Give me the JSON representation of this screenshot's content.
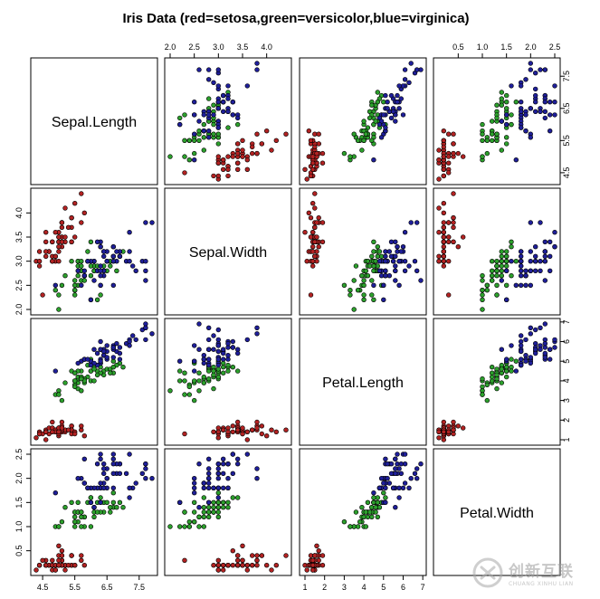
{
  "chart_data": {
    "type": "scatter",
    "subtype": "scatterplot-matrix",
    "title": "Iris Data (red=setosa,green=versicolor,blue=virginica)",
    "variables": [
      "Sepal.Length",
      "Sepal.Width",
      "Petal.Length",
      "Petal.Width"
    ],
    "ranges": [
      [
        4.3,
        7.9
      ],
      [
        2.0,
        4.4
      ],
      [
        1.0,
        6.9
      ],
      [
        0.1,
        2.5
      ]
    ],
    "ticks": [
      {
        "values": [
          4.5,
          5.5,
          6.5,
          7.5
        ],
        "labels": [
          "4.5",
          "5.5",
          "6.5",
          "7.5"
        ]
      },
      {
        "values": [
          2.0,
          2.5,
          3.0,
          3.5,
          4.0
        ],
        "labels": [
          "2.0",
          "2.5",
          "3.0",
          "3.5",
          "4.0"
        ]
      },
      {
        "values": [
          1,
          2,
          3,
          4,
          5,
          6,
          7
        ],
        "labels": [
          "1",
          "2",
          "3",
          "4",
          "5",
          "6",
          "7"
        ]
      },
      {
        "values": [
          0.5,
          1.0,
          1.5,
          2.0,
          2.5
        ],
        "labels": [
          "0.5",
          "1.0",
          "1.5",
          "2.0",
          "2.5"
        ]
      }
    ],
    "grid": false,
    "legend": "none",
    "series": [
      {
        "name": "setosa",
        "color": "#b22222",
        "points": [
          [
            5.1,
            3.5,
            1.4,
            0.2
          ],
          [
            4.9,
            3.0,
            1.4,
            0.2
          ],
          [
            4.7,
            3.2,
            1.3,
            0.2
          ],
          [
            4.6,
            3.1,
            1.5,
            0.2
          ],
          [
            5.0,
            3.6,
            1.4,
            0.2
          ],
          [
            5.4,
            3.9,
            1.7,
            0.4
          ],
          [
            4.6,
            3.4,
            1.4,
            0.3
          ],
          [
            5.0,
            3.4,
            1.5,
            0.2
          ],
          [
            4.4,
            2.9,
            1.4,
            0.2
          ],
          [
            4.9,
            3.1,
            1.5,
            0.1
          ],
          [
            5.4,
            3.7,
            1.5,
            0.2
          ],
          [
            4.8,
            3.4,
            1.6,
            0.2
          ],
          [
            4.8,
            3.0,
            1.4,
            0.1
          ],
          [
            4.3,
            3.0,
            1.1,
            0.1
          ],
          [
            5.8,
            4.0,
            1.2,
            0.2
          ],
          [
            5.7,
            4.4,
            1.5,
            0.4
          ],
          [
            5.4,
            3.9,
            1.3,
            0.4
          ],
          [
            5.1,
            3.5,
            1.4,
            0.3
          ],
          [
            5.7,
            3.8,
            1.7,
            0.3
          ],
          [
            5.1,
            3.8,
            1.5,
            0.3
          ],
          [
            5.4,
            3.4,
            1.7,
            0.2
          ],
          [
            5.1,
            3.7,
            1.5,
            0.4
          ],
          [
            4.6,
            3.6,
            1.0,
            0.2
          ],
          [
            5.1,
            3.3,
            1.7,
            0.5
          ],
          [
            4.8,
            3.4,
            1.9,
            0.2
          ],
          [
            5.0,
            3.0,
            1.6,
            0.2
          ],
          [
            5.0,
            3.4,
            1.6,
            0.4
          ],
          [
            5.2,
            3.5,
            1.5,
            0.2
          ],
          [
            5.2,
            3.4,
            1.4,
            0.2
          ],
          [
            4.7,
            3.2,
            1.6,
            0.2
          ],
          [
            4.8,
            3.1,
            1.6,
            0.2
          ],
          [
            5.4,
            3.4,
            1.5,
            0.4
          ],
          [
            5.2,
            4.1,
            1.5,
            0.1
          ],
          [
            5.5,
            4.2,
            1.4,
            0.2
          ],
          [
            4.9,
            3.1,
            1.5,
            0.2
          ],
          [
            5.0,
            3.2,
            1.2,
            0.2
          ],
          [
            5.5,
            3.5,
            1.3,
            0.2
          ],
          [
            4.9,
            3.6,
            1.4,
            0.1
          ],
          [
            4.4,
            3.0,
            1.3,
            0.2
          ],
          [
            5.1,
            3.4,
            1.5,
            0.2
          ],
          [
            5.0,
            3.5,
            1.3,
            0.3
          ],
          [
            4.5,
            2.3,
            1.3,
            0.3
          ],
          [
            4.4,
            3.2,
            1.3,
            0.2
          ],
          [
            5.0,
            3.5,
            1.6,
            0.6
          ],
          [
            5.1,
            3.8,
            1.9,
            0.4
          ],
          [
            4.8,
            3.0,
            1.4,
            0.3
          ],
          [
            5.1,
            3.8,
            1.6,
            0.2
          ],
          [
            4.6,
            3.2,
            1.4,
            0.2
          ],
          [
            5.3,
            3.7,
            1.5,
            0.2
          ],
          [
            5.0,
            3.3,
            1.4,
            0.2
          ]
        ]
      },
      {
        "name": "versicolor",
        "color": "#2ca02c",
        "points": [
          [
            7.0,
            3.2,
            4.7,
            1.4
          ],
          [
            6.4,
            3.2,
            4.5,
            1.5
          ],
          [
            6.9,
            3.1,
            4.9,
            1.5
          ],
          [
            5.5,
            2.3,
            4.0,
            1.3
          ],
          [
            6.5,
            2.8,
            4.6,
            1.5
          ],
          [
            5.7,
            2.8,
            4.5,
            1.3
          ],
          [
            6.3,
            3.3,
            4.7,
            1.6
          ],
          [
            4.9,
            2.4,
            3.3,
            1.0
          ],
          [
            6.6,
            2.9,
            4.6,
            1.3
          ],
          [
            5.2,
            2.7,
            3.9,
            1.4
          ],
          [
            5.0,
            2.0,
            3.5,
            1.0
          ],
          [
            5.9,
            3.0,
            4.2,
            1.5
          ],
          [
            6.0,
            2.2,
            4.0,
            1.0
          ],
          [
            6.1,
            2.9,
            4.7,
            1.4
          ],
          [
            5.6,
            2.9,
            3.6,
            1.3
          ],
          [
            6.7,
            3.1,
            4.4,
            1.4
          ],
          [
            5.6,
            3.0,
            4.5,
            1.5
          ],
          [
            5.8,
            2.7,
            4.1,
            1.0
          ],
          [
            6.2,
            2.2,
            4.5,
            1.5
          ],
          [
            5.6,
            2.5,
            3.9,
            1.1
          ],
          [
            5.9,
            3.2,
            4.8,
            1.8
          ],
          [
            6.1,
            2.8,
            4.0,
            1.3
          ],
          [
            6.3,
            2.5,
            4.9,
            1.5
          ],
          [
            6.1,
            2.8,
            4.7,
            1.2
          ],
          [
            6.4,
            2.9,
            4.3,
            1.3
          ],
          [
            6.6,
            3.0,
            4.4,
            1.4
          ],
          [
            6.8,
            2.8,
            4.8,
            1.4
          ],
          [
            6.7,
            3.0,
            5.0,
            1.7
          ],
          [
            6.0,
            2.9,
            4.5,
            1.5
          ],
          [
            5.7,
            2.6,
            3.5,
            1.0
          ],
          [
            5.5,
            2.4,
            3.8,
            1.1
          ],
          [
            5.5,
            2.4,
            3.7,
            1.0
          ],
          [
            5.8,
            2.7,
            3.9,
            1.2
          ],
          [
            6.0,
            2.7,
            5.1,
            1.6
          ],
          [
            5.4,
            3.0,
            4.5,
            1.5
          ],
          [
            6.0,
            3.4,
            4.5,
            1.6
          ],
          [
            6.7,
            3.1,
            4.7,
            1.5
          ],
          [
            6.3,
            2.3,
            4.4,
            1.3
          ],
          [
            5.6,
            3.0,
            4.1,
            1.3
          ],
          [
            5.5,
            2.5,
            4.0,
            1.3
          ],
          [
            5.5,
            2.6,
            4.4,
            1.2
          ],
          [
            6.1,
            3.0,
            4.6,
            1.4
          ],
          [
            5.8,
            2.6,
            4.0,
            1.2
          ],
          [
            5.0,
            2.3,
            3.3,
            1.0
          ],
          [
            5.6,
            2.7,
            4.2,
            1.3
          ],
          [
            5.7,
            3.0,
            4.2,
            1.2
          ],
          [
            5.7,
            2.9,
            4.2,
            1.3
          ],
          [
            6.2,
            2.9,
            4.3,
            1.3
          ],
          [
            5.1,
            2.5,
            3.0,
            1.1
          ],
          [
            5.7,
            2.8,
            4.1,
            1.3
          ]
        ]
      },
      {
        "name": "virginica",
        "color": "#1f1f9a",
        "points": [
          [
            6.3,
            3.3,
            6.0,
            2.5
          ],
          [
            5.8,
            2.7,
            5.1,
            1.9
          ],
          [
            7.1,
            3.0,
            5.9,
            2.1
          ],
          [
            6.3,
            2.9,
            5.6,
            1.8
          ],
          [
            6.5,
            3.0,
            5.8,
            2.2
          ],
          [
            7.6,
            3.0,
            6.6,
            2.1
          ],
          [
            4.9,
            2.5,
            4.5,
            1.7
          ],
          [
            7.3,
            2.9,
            6.3,
            1.8
          ],
          [
            6.7,
            2.5,
            5.8,
            1.8
          ],
          [
            7.2,
            3.6,
            6.1,
            2.5
          ],
          [
            6.5,
            3.2,
            5.1,
            2.0
          ],
          [
            6.4,
            2.7,
            5.3,
            1.9
          ],
          [
            6.8,
            3.0,
            5.5,
            2.1
          ],
          [
            5.7,
            2.5,
            5.0,
            2.0
          ],
          [
            5.8,
            2.8,
            5.1,
            2.4
          ],
          [
            6.4,
            3.2,
            5.3,
            2.3
          ],
          [
            6.5,
            3.0,
            5.5,
            1.8
          ],
          [
            7.7,
            3.8,
            6.7,
            2.2
          ],
          [
            7.7,
            2.6,
            6.9,
            2.3
          ],
          [
            6.0,
            2.2,
            5.0,
            1.5
          ],
          [
            6.9,
            3.2,
            5.7,
            2.3
          ],
          [
            5.6,
            2.8,
            4.9,
            2.0
          ],
          [
            7.7,
            2.8,
            6.7,
            2.0
          ],
          [
            6.3,
            2.7,
            4.9,
            1.8
          ],
          [
            6.7,
            3.3,
            5.7,
            2.1
          ],
          [
            7.2,
            3.2,
            6.0,
            1.8
          ],
          [
            6.2,
            2.8,
            4.8,
            1.8
          ],
          [
            6.1,
            3.0,
            4.9,
            1.8
          ],
          [
            6.4,
            2.8,
            5.6,
            2.1
          ],
          [
            7.2,
            3.0,
            5.8,
            1.6
          ],
          [
            7.4,
            2.8,
            6.1,
            1.9
          ],
          [
            7.9,
            3.8,
            6.4,
            2.0
          ],
          [
            6.4,
            2.8,
            5.6,
            2.2
          ],
          [
            6.3,
            2.8,
            5.1,
            1.5
          ],
          [
            6.1,
            2.6,
            5.6,
            1.4
          ],
          [
            7.7,
            3.0,
            6.1,
            2.3
          ],
          [
            6.3,
            3.4,
            5.6,
            2.4
          ],
          [
            6.4,
            3.1,
            5.5,
            1.8
          ],
          [
            6.0,
            3.0,
            4.8,
            1.8
          ],
          [
            6.9,
            3.1,
            5.4,
            2.1
          ],
          [
            6.7,
            3.1,
            5.6,
            2.4
          ],
          [
            6.9,
            3.1,
            5.1,
            2.3
          ],
          [
            5.8,
            2.7,
            5.1,
            1.9
          ],
          [
            6.8,
            3.2,
            5.9,
            2.3
          ],
          [
            6.7,
            3.3,
            5.7,
            2.5
          ],
          [
            6.7,
            3.0,
            5.2,
            2.3
          ],
          [
            6.3,
            2.5,
            5.0,
            1.9
          ],
          [
            6.5,
            3.0,
            5.2,
            2.0
          ],
          [
            6.2,
            3.4,
            5.4,
            2.3
          ],
          [
            5.9,
            3.0,
            5.1,
            1.8
          ]
        ]
      }
    ]
  },
  "watermark": {
    "cn": "创新互联",
    "en": "CHUANG XINHU LIAN"
  }
}
